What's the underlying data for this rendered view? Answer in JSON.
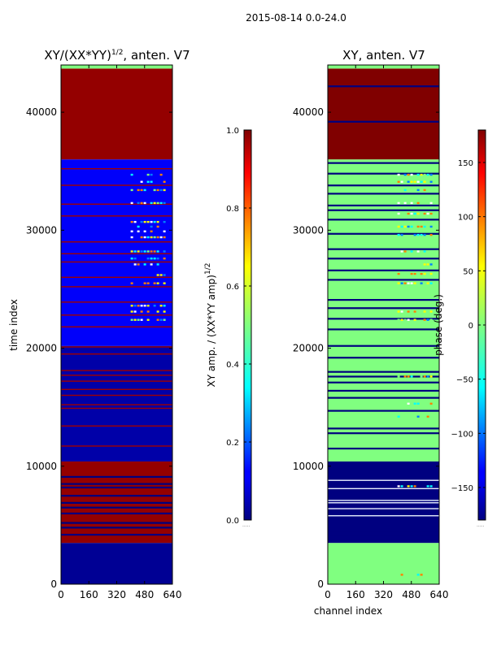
{
  "figure": {
    "suptitle": "2015-08-14 0.0-24.0",
    "dots": ".....",
    "colors": {
      "dark_red": "#800000",
      "navy": "#00007f",
      "blue": "#0000ff",
      "cyan": "#00ffff",
      "light_green": "#80ff80",
      "yellow": "#ffff00",
      "orange": "#ff8000",
      "red": "#ff0000"
    }
  },
  "chart_data": [
    {
      "type": "heatmap",
      "title_main": "XY/(XX*YY)",
      "title_sup": "1/2",
      "title_tail": ", anten. V7",
      "xlabel": "",
      "ylabel": "time index",
      "xlim": [
        0,
        640
      ],
      "ylim": [
        0,
        44000
      ],
      "xticks": [
        "0",
        "160",
        "320",
        "480",
        "640"
      ],
      "yticks": [
        "0",
        "10000",
        "20000",
        "30000",
        "40000"
      ],
      "xtick_values": [
        0,
        160,
        320,
        480,
        640
      ],
      "ytick_values": [
        0,
        10000,
        20000,
        30000,
        40000
      ],
      "row_bands": [
        {
          "from": 0,
          "to": 3500,
          "value": 0.02
        },
        {
          "from": 3500,
          "to": 10400,
          "value": 0.98
        },
        {
          "from": 10400,
          "to": 20200,
          "value": 0.04
        },
        {
          "from": 20200,
          "to": 36000,
          "value": 0.12
        },
        {
          "from": 36000,
          "to": 43700,
          "value": 0.98
        }
      ],
      "red_lines": [
        11700,
        13400,
        14900,
        15200,
        16000,
        16500,
        17200,
        17700,
        18100,
        19500,
        20100,
        21800,
        22800,
        23900,
        25200,
        26000,
        27300,
        28000,
        29000,
        31200,
        32200,
        33800,
        35200
      ],
      "navy_lines": [
        4200,
        4800,
        5200,
        6000,
        6500,
        6900,
        7500,
        8200,
        8500,
        9100
      ],
      "hot_region": {
        "x_from": 400,
        "x_to": 600,
        "rows": [
          22400,
          23100,
          23600,
          25500,
          26200,
          27100,
          27600,
          28200,
          29400,
          29900,
          30300,
          30700,
          32300,
          33400,
          34100,
          34700
        ]
      },
      "colorbar": {
        "label_main": "XY amp. / (XX*YY amp)",
        "label_sup": "1/2",
        "ticks": [
          "0.0",
          "0.2",
          "0.4",
          "0.6",
          "0.8",
          "1.0"
        ],
        "tick_values": [
          0,
          0.2,
          0.4,
          0.6,
          0.8,
          1.0
        ],
        "range": [
          0,
          1
        ]
      }
    },
    {
      "type": "heatmap",
      "title": "XY, anten. V7",
      "xlabel": "channel index",
      "ylabel": "",
      "xlim": [
        0,
        640
      ],
      "ylim": [
        0,
        44000
      ],
      "xticks": [
        "0",
        "160",
        "320",
        "480",
        "640"
      ],
      "yticks": [
        "0",
        "10000",
        "20000",
        "30000",
        "40000"
      ],
      "xtick_values": [
        0,
        160,
        320,
        480,
        640
      ],
      "ytick_values": [
        0,
        10000,
        20000,
        30000,
        40000
      ],
      "row_bands": [
        {
          "from": 0,
          "to": 3500,
          "value": 0
        },
        {
          "from": 3500,
          "to": 10400,
          "value": -180
        },
        {
          "from": 10400,
          "to": 36000,
          "value": 0
        },
        {
          "from": 36000,
          "to": 43700,
          "value": 180
        }
      ],
      "navy_lines": [
        3800,
        4100,
        4500,
        11500,
        12800,
        13200,
        14700,
        15800,
        16400,
        17100,
        17600,
        18000,
        19200,
        20200,
        21600,
        22500,
        23400,
        24100,
        25800,
        26600,
        27600,
        28400,
        29700,
        30900,
        31700,
        32100,
        33100,
        33800,
        34800,
        35700,
        39200,
        42200
      ],
      "white_lines": [
        5800,
        6400,
        6900,
        7100,
        8100,
        8800
      ],
      "hot_region": {
        "x_from": 400,
        "x_to": 600,
        "rows": [
          22400,
          23100,
          25500,
          26300,
          27100,
          28200,
          29600,
          30300,
          31400,
          32300,
          33400,
          34100,
          34700,
          17600,
          15300,
          14200,
          800,
          8300
        ]
      },
      "colorbar": {
        "label": "phase (deg.)",
        "ticks": [
          "−150",
          "−100",
          "−50",
          "0",
          "50",
          "100",
          "150"
        ],
        "tick_values": [
          -150,
          -100,
          -50,
          0,
          50,
          100,
          150
        ],
        "range": [
          -180,
          180
        ]
      }
    }
  ]
}
